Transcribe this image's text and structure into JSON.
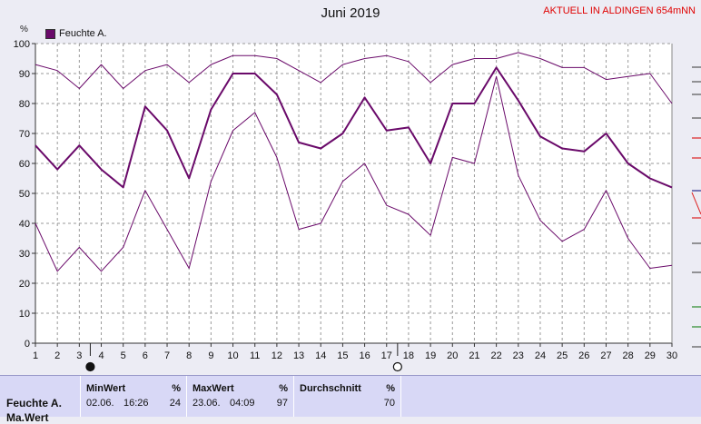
{
  "header": {
    "title": "Juni 2019",
    "location": "AKTUELL IN ALDINGEN 654mNN",
    "unit": "%"
  },
  "colors": {
    "series": "#6a0a6a",
    "grid": "#9a9a9a",
    "background": "#ececf4",
    "panel": "#d8d8f6"
  },
  "chart_data": {
    "type": "line",
    "title": "Juni 2019",
    "xlabel": "",
    "ylabel": "%",
    "ylim": [
      0,
      100
    ],
    "xlim": [
      1,
      30
    ],
    "grid": true,
    "legend": "top-left",
    "x": [
      1,
      2,
      3,
      4,
      5,
      6,
      7,
      8,
      9,
      10,
      11,
      12,
      13,
      14,
      15,
      16,
      17,
      18,
      19,
      20,
      21,
      22,
      23,
      24,
      25,
      26,
      27,
      28,
      29,
      30
    ],
    "xticks": [
      1,
      2,
      3,
      4,
      5,
      6,
      7,
      8,
      9,
      10,
      11,
      12,
      13,
      14,
      15,
      16,
      17,
      18,
      19,
      20,
      21,
      22,
      23,
      24,
      25,
      26,
      27,
      28,
      29,
      30
    ],
    "yticks": [
      0,
      10,
      20,
      30,
      40,
      50,
      60,
      70,
      80,
      90,
      100
    ],
    "series": [
      {
        "name": "Feuchte A.",
        "role": "mean",
        "values": [
          66,
          58,
          66,
          58,
          52,
          79,
          71,
          55,
          78,
          90,
          90,
          83,
          67,
          65,
          70,
          82,
          71,
          72,
          60,
          80,
          80,
          92,
          81,
          69,
          65,
          64,
          70,
          60,
          55,
          52
        ]
      },
      {
        "name": "",
        "role": "max",
        "values": [
          93,
          91,
          85,
          93,
          85,
          91,
          93,
          87,
          93,
          96,
          96,
          95,
          91,
          87,
          93,
          95,
          96,
          94,
          87,
          93,
          95,
          95,
          97,
          95,
          92,
          92,
          88,
          89,
          90,
          80
        ]
      },
      {
        "name": "",
        "role": "min",
        "values": [
          40,
          24,
          32,
          24,
          32,
          51,
          38,
          25,
          54,
          71,
          77,
          62,
          38,
          40,
          54,
          60,
          46,
          43,
          36,
          62,
          60,
          89,
          56,
          41,
          34,
          38,
          51,
          35,
          25,
          26
        ]
      }
    ]
  },
  "summary": {
    "series_label": "Feuchte A.",
    "series_label2": "Ma.Wert",
    "min": {
      "title": "MinWert",
      "unit": "%",
      "date": "02.06.",
      "time": "16:26",
      "value": "24"
    },
    "max": {
      "title": "MaxWert",
      "unit": "%",
      "date": "23.06.",
      "time": "04:09",
      "value": "97"
    },
    "avg": {
      "title": "Durchschnitt",
      "unit": "%",
      "value": "70"
    }
  }
}
